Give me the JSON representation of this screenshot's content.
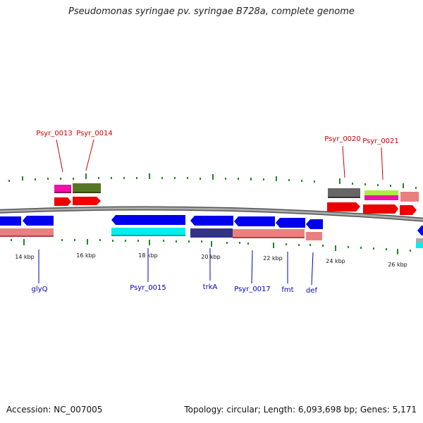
{
  "title": "Pseudomonas syringae pv. syringae B728a, complete genome",
  "footer": {
    "accession": "Accession: NC_007005",
    "summary": "Topology: circular; Length: 6,093,698 bp; Genes: 5,171"
  },
  "scale": {
    "unit": "kbp",
    "ticks": [
      "14 kbp",
      "16 kbp",
      "18 kbp",
      "20 kbp",
      "22 kbp",
      "24 kbp",
      "26 kbp"
    ]
  },
  "gene_labels_top": [
    "Psyr_0013",
    "Psyr_0014",
    "Psyr_0020",
    "Psyr_0021"
  ],
  "gene_labels_bottom": [
    "glyQ",
    "Psyr_0015",
    "trkA",
    "Psyr_0017",
    "fmt",
    "def"
  ],
  "colors": {
    "top_label": "#cc0000",
    "bottom_label": "#0000bb",
    "tick": "#228822",
    "backbone": "#888888",
    "blue_gene": "#0000ee",
    "red_gene": "#ee0000",
    "cyan_gene": "#00eeee",
    "salmon_gene": "#e88080",
    "darkblue_gene": "#333388",
    "magenta_gene": "#ee11aa",
    "olive_gene": "#557722",
    "gray_gene": "#666666",
    "lime_gene": "#aaee44"
  }
}
